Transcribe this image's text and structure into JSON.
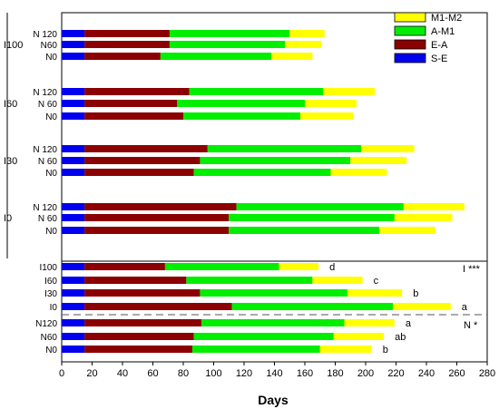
{
  "chart_data": {
    "type": "bar",
    "orientation": "horizontal",
    "stacked": true,
    "xlabel": "Days",
    "xlim": [
      0,
      280
    ],
    "x_ticks": [
      0,
      20,
      40,
      60,
      80,
      100,
      120,
      140,
      160,
      180,
      200,
      220,
      240,
      260,
      280
    ],
    "legend": {
      "placement": "top-right",
      "entries": [
        {
          "label": "M1-M2",
          "color": "#ffff00"
        },
        {
          "label": "A-M1",
          "color": "#00ee00"
        },
        {
          "label": "E-A",
          "color": "#8b0000"
        },
        {
          "label": "S-E",
          "color": "#0000ee"
        }
      ]
    },
    "series_order": [
      "S-E",
      "E-A",
      "A-M1",
      "M1-M2"
    ],
    "colors": {
      "S-E": "#0000ee",
      "E-A": "#8b0000",
      "A-M1": "#00ee00",
      "M1-M2": "#ffff00"
    },
    "groups": [
      {
        "label": "I100",
        "bars": [
          {
            "label": "N 120",
            "segments": [
              15,
              56,
              79,
              23
            ]
          },
          {
            "label": "N60",
            "segments": [
              15,
              56,
              76,
              24
            ]
          },
          {
            "label": "N0",
            "segments": [
              15,
              50,
              73,
              27
            ]
          }
        ]
      },
      {
        "label": "I60",
        "bars": [
          {
            "label": "N 120",
            "segments": [
              15,
              69,
              88,
              34
            ]
          },
          {
            "label": "N 60",
            "segments": [
              15,
              61,
              84,
              34
            ]
          },
          {
            "label": "N0",
            "segments": [
              15,
              65,
              77,
              35
            ]
          }
        ]
      },
      {
        "label": "I30",
        "bars": [
          {
            "label": "N 120",
            "segments": [
              15,
              81,
              101,
              35
            ]
          },
          {
            "label": "N 60",
            "segments": [
              15,
              76,
              99,
              37
            ]
          },
          {
            "label": "N0",
            "segments": [
              15,
              72,
              90,
              37
            ]
          }
        ]
      },
      {
        "label": "I0",
        "bars": [
          {
            "label": "N 120",
            "segments": [
              15,
              100,
              110,
              40
            ]
          },
          {
            "label": "N 60",
            "segments": [
              15,
              95,
              109,
              38
            ]
          },
          {
            "label": "N0",
            "segments": [
              15,
              95,
              99,
              37
            ]
          }
        ]
      }
    ],
    "irrigation_means": {
      "annotation": "I ***",
      "bars": [
        {
          "label": "I100",
          "segments": [
            15,
            53,
            75,
            26
          ],
          "letter": "d"
        },
        {
          "label": "I60",
          "segments": [
            15,
            67,
            83,
            33
          ],
          "letter": "c"
        },
        {
          "label": "I30",
          "segments": [
            15,
            76,
            97,
            36
          ],
          "letter": "b"
        },
        {
          "label": "I0",
          "segments": [
            15,
            97,
            106,
            38
          ],
          "letter": "a"
        }
      ]
    },
    "nitrogen_means": {
      "annotation": "N *",
      "bars": [
        {
          "label": "N120",
          "segments": [
            15,
            77,
            94,
            33
          ],
          "letter": "a"
        },
        {
          "label": "N60",
          "segments": [
            15,
            72,
            92,
            33
          ],
          "letter": "ab"
        },
        {
          "label": "N0",
          "segments": [
            15,
            71,
            84,
            34
          ],
          "letter": "b"
        }
      ]
    }
  }
}
